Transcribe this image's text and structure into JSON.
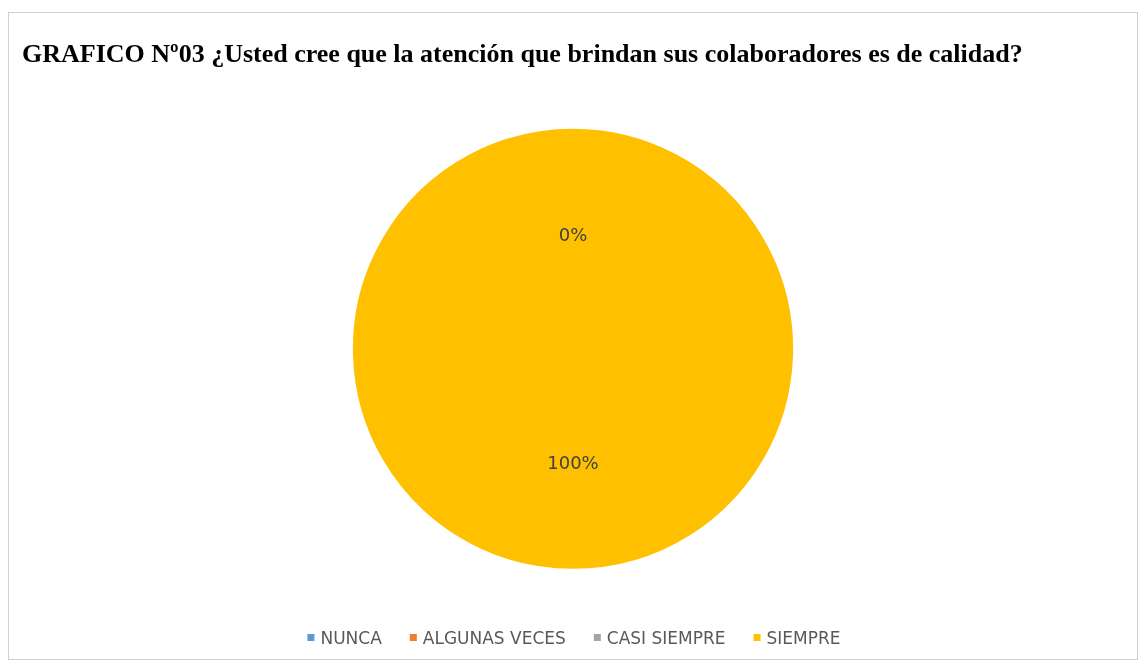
{
  "chart_data": {
    "type": "pie",
    "title": "GRAFICO Nº03 ¿Usted cree que la atención que brindan sus colaboradores es de calidad?",
    "categories": [
      "NUNCA",
      "ALGUNAS VECES",
      "CASI SIEMPRE",
      "SIEMPRE"
    ],
    "values": [
      0,
      0,
      0,
      100
    ],
    "colors": [
      "#5b9bd5",
      "#ed7d31",
      "#a5a5a5",
      "#ffc000"
    ],
    "value_labels": [
      null,
      null,
      "0%",
      "100%"
    ],
    "legend": "bottom"
  }
}
